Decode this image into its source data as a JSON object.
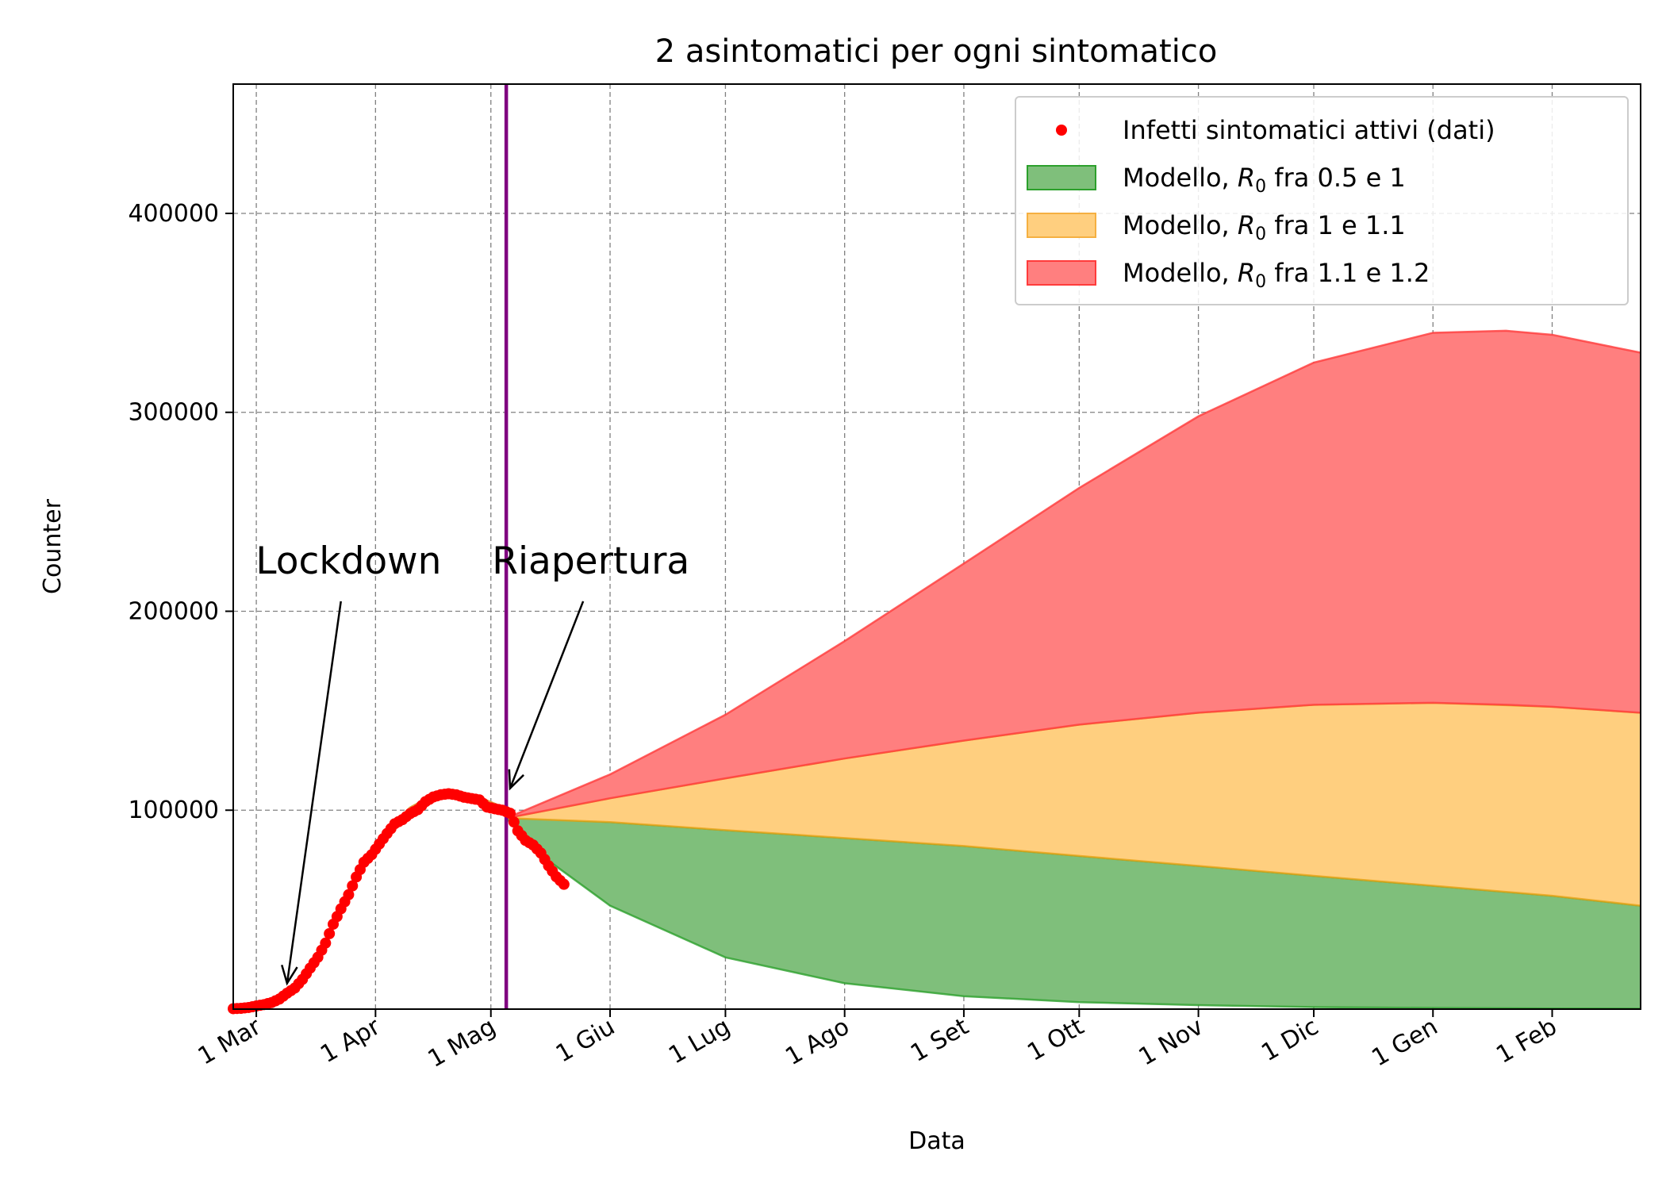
{
  "chart_data": {
    "type": "area",
    "title": "2 asintomatici per ogni sintomatico",
    "xlabel": "Data",
    "ylabel": "Counter",
    "x_axis_type": "date",
    "xlim": [
      "2020-02-24",
      "2021-02-24"
    ],
    "ylim": [
      0,
      465000
    ],
    "x_ticks": [
      {
        "date": "2020-03-01",
        "label": "1 Mar"
      },
      {
        "date": "2020-04-01",
        "label": "1 Apr"
      },
      {
        "date": "2020-05-01",
        "label": "1 Mag"
      },
      {
        "date": "2020-06-01",
        "label": "1 Giu"
      },
      {
        "date": "2020-07-01",
        "label": "1 Lug"
      },
      {
        "date": "2020-08-01",
        "label": "1 Ago"
      },
      {
        "date": "2020-09-01",
        "label": "1 Set"
      },
      {
        "date": "2020-10-01",
        "label": "1 Ott"
      },
      {
        "date": "2020-11-01",
        "label": "1 Nov"
      },
      {
        "date": "2020-12-01",
        "label": "1 Dic"
      },
      {
        "date": "2021-01-01",
        "label": "1 Gen"
      },
      {
        "date": "2021-02-01",
        "label": "1 Feb"
      }
    ],
    "y_ticks": [
      {
        "value": 100000,
        "label": "100000"
      },
      {
        "value": 200000,
        "label": "200000"
      },
      {
        "value": 300000,
        "label": "300000"
      },
      {
        "value": 400000,
        "label": "400000"
      }
    ],
    "grid": true,
    "legend_position": "top-right",
    "vertical_line": {
      "date": "2020-05-05",
      "color": "#800080"
    },
    "colors": {
      "data_points": "#ff0000",
      "green_fill": "#7fbf7b",
      "green_edge": "#2ca02c",
      "orange_fill": "#ffcf7f",
      "orange_edge": "#e8a317",
      "red_fill": "#ff7f7f",
      "red_edge": "#ff3b3b",
      "fit_curve": "#e0a040"
    },
    "legend": [
      {
        "label": "Infetti sintomatici attivi (dati)",
        "kind": "marker",
        "color": "#ff0000"
      },
      {
        "label_prefix": "Modello, ",
        "label_symbol": "R",
        "label_sub": "0",
        "label_suffix": " fra 0.5 e 1",
        "kind": "patch",
        "fill": "#7fbf7b",
        "edge": "#2ca02c"
      },
      {
        "label_prefix": "Modello, ",
        "label_symbol": "R",
        "label_sub": "0",
        "label_suffix": " fra 1 e 1.1",
        "kind": "patch",
        "fill": "#ffcf7f",
        "edge": "#f5b041"
      },
      {
        "label_prefix": "Modello, ",
        "label_symbol": "R",
        "label_sub": "0",
        "label_suffix": " fra 1.1 e 1.2",
        "kind": "patch",
        "fill": "#ff7f7f",
        "edge": "#ff3b3b"
      }
    ],
    "annotations": [
      {
        "text": "Lockdown",
        "text_at": {
          "date": "2020-03-25",
          "value": 219000
        },
        "arrow_from": {
          "date": "2020-03-23",
          "value": 205000
        },
        "arrow_to": {
          "date": "2020-03-09",
          "value": 13000
        }
      },
      {
        "text": "Riapertura",
        "text_at": {
          "date": "2020-05-27",
          "value": 219000
        },
        "arrow_from": {
          "date": "2020-05-25",
          "value": 205000
        },
        "arrow_to": {
          "date": "2020-05-06",
          "value": 111000
        }
      }
    ],
    "series": [
      {
        "name": "Infetti sintomatici attivi (dati)",
        "kind": "points",
        "points": [
          [
            "2020-02-24",
            221
          ],
          [
            "2020-02-26",
            400
          ],
          [
            "2020-02-28",
            821
          ],
          [
            "2020-03-01",
            1577
          ],
          [
            "2020-03-03",
            2263
          ],
          [
            "2020-03-05",
            3296
          ],
          [
            "2020-03-07",
            5061
          ],
          [
            "2020-03-09",
            7985
          ],
          [
            "2020-03-11",
            10590
          ],
          [
            "2020-03-13",
            14955
          ],
          [
            "2020-03-15",
            20603
          ],
          [
            "2020-03-17",
            26062
          ],
          [
            "2020-03-19",
            33190
          ],
          [
            "2020-03-21",
            42681
          ],
          [
            "2020-03-23",
            50418
          ],
          [
            "2020-03-25",
            57521
          ],
          [
            "2020-03-27",
            66414
          ],
          [
            "2020-03-29",
            73880
          ],
          [
            "2020-03-31",
            77635
          ],
          [
            "2020-04-02",
            83049
          ],
          [
            "2020-04-04",
            88274
          ],
          [
            "2020-04-06",
            93187
          ],
          [
            "2020-04-08",
            95262
          ],
          [
            "2020-04-10",
            98273
          ],
          [
            "2020-04-12",
            100269
          ],
          [
            "2020-04-14",
            104291
          ],
          [
            "2020-04-16",
            106607
          ],
          [
            "2020-04-18",
            107771
          ],
          [
            "2020-04-20",
            108257
          ],
          [
            "2020-04-22",
            107709
          ],
          [
            "2020-04-24",
            106527
          ],
          [
            "2020-04-26",
            105847
          ],
          [
            "2020-04-28",
            105205
          ],
          [
            "2020-04-30",
            101551
          ],
          [
            "2020-05-02",
            100704
          ],
          [
            "2020-05-04",
            99980
          ],
          [
            "2020-05-06",
            98467
          ],
          [
            "2020-05-08",
            89624
          ],
          [
            "2020-05-10",
            84842
          ],
          [
            "2020-05-12",
            82488
          ],
          [
            "2020-05-14",
            78457
          ],
          [
            "2020-05-16",
            72070
          ],
          [
            "2020-05-18",
            66553
          ],
          [
            "2020-05-20",
            62752
          ]
        ]
      },
      {
        "name": "fit",
        "kind": "line",
        "points": [
          [
            "2020-02-24",
            200
          ],
          [
            "2020-03-01",
            1600
          ],
          [
            "2020-03-08",
            6500
          ],
          [
            "2020-03-14",
            17500
          ],
          [
            "2020-03-20",
            38000
          ],
          [
            "2020-03-27",
            66000
          ],
          [
            "2020-04-03",
            87000
          ],
          [
            "2020-04-10",
            101000
          ],
          [
            "2020-04-17",
            108500
          ],
          [
            "2020-04-21",
            110000
          ],
          [
            "2020-04-27",
            107000
          ],
          [
            "2020-05-05",
            100500
          ]
        ]
      },
      {
        "name": "Modello, R0 fra 0.5 e 1",
        "kind": "band",
        "points": [
          [
            "2020-05-05",
            96000,
            96000
          ],
          [
            "2020-05-15",
            76000,
            95500
          ],
          [
            "2020-06-01",
            52000,
            94000
          ],
          [
            "2020-07-01",
            26000,
            90000
          ],
          [
            "2020-08-01",
            13000,
            86000
          ],
          [
            "2020-09-01",
            6500,
            82000
          ],
          [
            "2020-10-01",
            3500,
            77000
          ],
          [
            "2020-11-01",
            2000,
            72000
          ],
          [
            "2020-12-01",
            1000,
            67000
          ],
          [
            "2021-01-01",
            600,
            62000
          ],
          [
            "2021-02-01",
            300,
            57000
          ],
          [
            "2021-02-24",
            200,
            52000
          ]
        ]
      },
      {
        "name": "Modello, R0 fra 1 e 1.1",
        "kind": "band",
        "points": [
          [
            "2020-05-05",
            96000,
            96000
          ],
          [
            "2020-06-01",
            94000,
            106000
          ],
          [
            "2020-07-01",
            90000,
            116000
          ],
          [
            "2020-08-01",
            86000,
            126000
          ],
          [
            "2020-09-01",
            82000,
            135000
          ],
          [
            "2020-10-01",
            77000,
            143000
          ],
          [
            "2020-11-01",
            72000,
            149000
          ],
          [
            "2020-12-01",
            67000,
            153000
          ],
          [
            "2021-01-01",
            62000,
            154000
          ],
          [
            "2021-02-01",
            57000,
            152000
          ],
          [
            "2021-02-24",
            52000,
            149000
          ]
        ]
      },
      {
        "name": "Modello, R0 fra 1.1 e 1.2",
        "kind": "band",
        "points": [
          [
            "2020-05-05",
            96000,
            96000
          ],
          [
            "2020-06-01",
            106000,
            118000
          ],
          [
            "2020-07-01",
            116000,
            148000
          ],
          [
            "2020-08-01",
            126000,
            185000
          ],
          [
            "2020-09-01",
            135000,
            224000
          ],
          [
            "2020-10-01",
            143000,
            262000
          ],
          [
            "2020-11-01",
            149000,
            298000
          ],
          [
            "2020-12-01",
            153000,
            325000
          ],
          [
            "2021-01-01",
            154000,
            340000
          ],
          [
            "2021-01-20",
            153000,
            341000
          ],
          [
            "2021-02-01",
            152000,
            339000
          ],
          [
            "2021-02-24",
            149000,
            330000
          ]
        ]
      }
    ]
  }
}
